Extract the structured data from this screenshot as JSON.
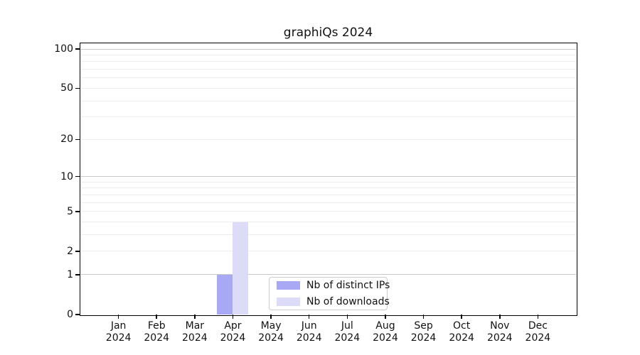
{
  "figure": {
    "title": "graphiQs 2024"
  },
  "chart_data": {
    "type": "bar",
    "title": "graphiQs 2024",
    "categories": [
      "Jan",
      "Feb",
      "Mar",
      "Apr",
      "May",
      "Jun",
      "Jul",
      "Aug",
      "Sep",
      "Oct",
      "Nov",
      "Dec"
    ],
    "category_year": "2024",
    "series": [
      {
        "name": "Nb of distinct IPs",
        "color": "#a8a8f5",
        "values": [
          0,
          0,
          0,
          1,
          0,
          0,
          0,
          0,
          0,
          0,
          0,
          0
        ]
      },
      {
        "name": "Nb of downloads",
        "color": "#dcdcf8",
        "values": [
          0,
          0,
          0,
          4,
          0,
          0,
          0,
          0,
          0,
          0,
          0,
          0
        ]
      }
    ],
    "xlabel": "",
    "ylabel": "",
    "yscale": "log1p",
    "ylim": [
      0,
      110.5
    ],
    "y_ticks": [
      0,
      1,
      2,
      5,
      10,
      20,
      50,
      100
    ],
    "y_major_gridlines": [
      1,
      10,
      100
    ],
    "y_minor_gridlines": [
      2,
      3,
      4,
      5,
      6,
      7,
      8,
      9,
      20,
      30,
      40,
      50,
      60,
      70,
      80,
      90
    ],
    "grid": true,
    "legend_position": "lower center",
    "colors": {
      "major_grid": "#c8c8c8",
      "minor_grid": "#ededed",
      "axis": "#000000",
      "text": "#111111",
      "background": "#ffffff"
    }
  }
}
